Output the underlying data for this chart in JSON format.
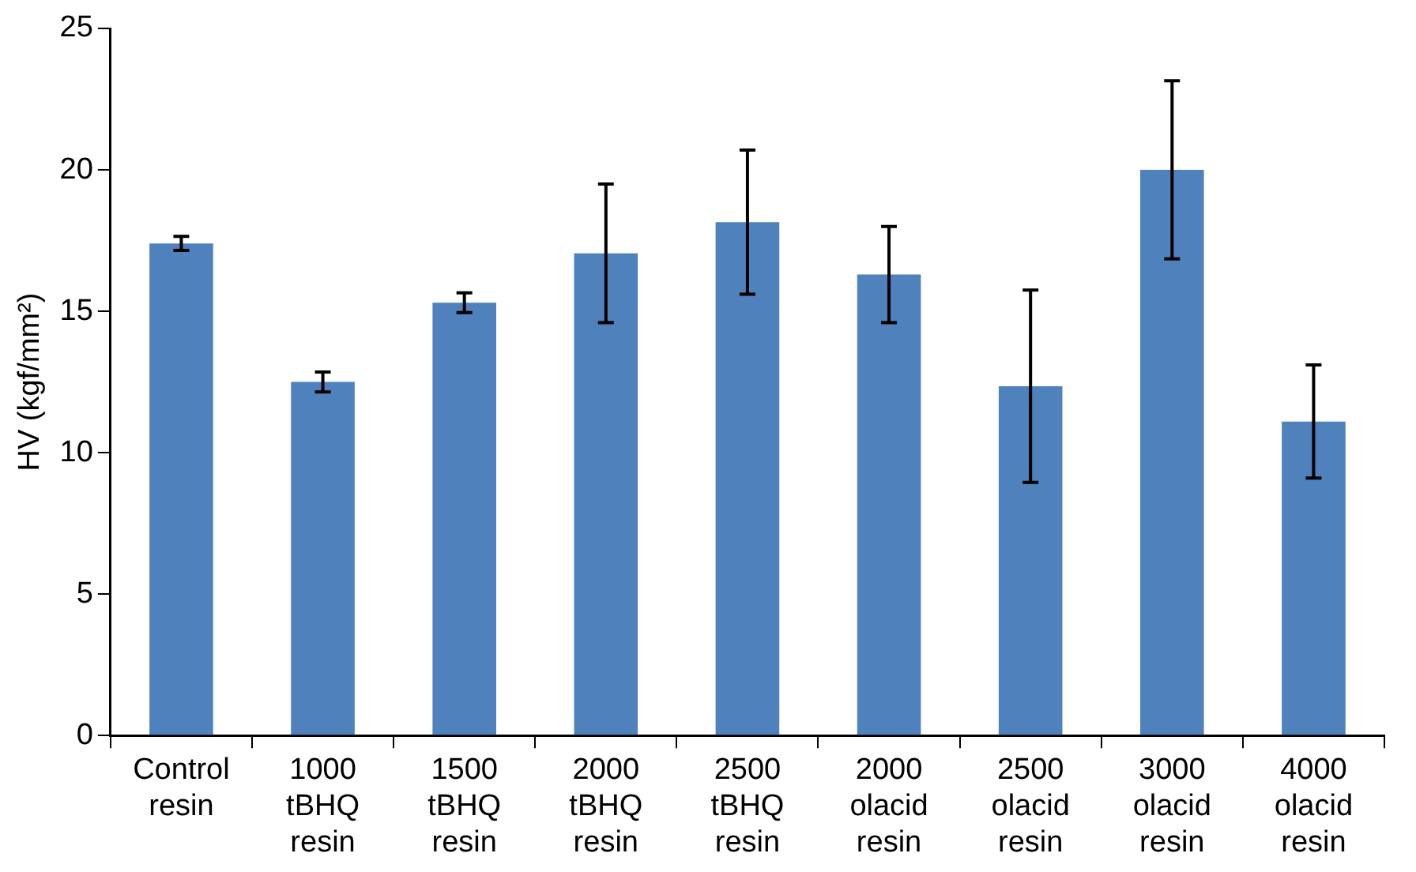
{
  "chart_data": {
    "type": "bar",
    "ylabel": "HV (kgf/mm²)",
    "categories": [
      "Control resin",
      "1000 tBHQ resin",
      "1500 tBHQ resin",
      "2000 tBHQ resin",
      "2500 tBHQ resin",
      "2000 olacid resin",
      "2500 olacid resin",
      "3000 olacid resin",
      "4000 olacid resin"
    ],
    "values": [
      17.4,
      12.5,
      15.3,
      17.05,
      18.15,
      16.3,
      12.35,
      20.0,
      11.1
    ],
    "errors": [
      0.25,
      0.35,
      0.35,
      2.45,
      2.55,
      1.7,
      3.4,
      3.15,
      2.0
    ],
    "color": "#4f81bd",
    "ylim": [
      0,
      25
    ],
    "yticks": [
      0,
      5,
      10,
      15,
      20,
      25
    ]
  }
}
